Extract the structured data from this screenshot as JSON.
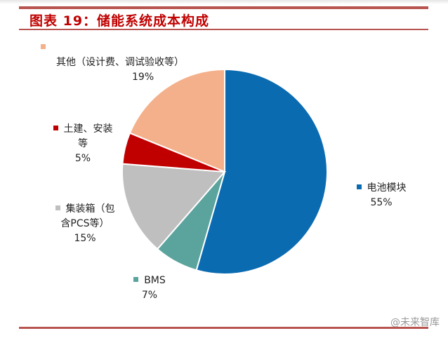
{
  "title": "图表 19：储能系统成本构成",
  "watermark": "@未来智库",
  "chart_data": {
    "type": "pie",
    "title": "",
    "start_angle": "12 o'clock",
    "direction": "clockwise",
    "slices": [
      {
        "name": "电池模块",
        "value": 55,
        "label": "55%",
        "color": "#0B6BB1"
      },
      {
        "name": "BMS",
        "value": 7,
        "label": "7%",
        "color": "#5BA39D"
      },
      {
        "name": "集装箱（包含PCS等）",
        "value": 15,
        "label": "15%",
        "color": "#BFBFBF"
      },
      {
        "name": "土建、安装等",
        "value": 5,
        "label": "5%",
        "color": "#C00000"
      },
      {
        "name": "其他（设计费、调试验收等）",
        "value": 19,
        "label": "19%",
        "color": "#F4B08A"
      }
    ],
    "legend": "labels beside slices"
  },
  "labels": {
    "battery_name": "电池模块",
    "battery_pct": "55%",
    "bms_name": "BMS",
    "bms_pct": "7%",
    "container_name1": "集装箱（包",
    "container_name2": "含PCS等）",
    "container_pct": "15%",
    "civil_name1": "土建、安装",
    "civil_name2": "等",
    "civil_pct": "5%",
    "other_name": "其他（设计费、调试验收等）",
    "other_pct": "19%"
  }
}
